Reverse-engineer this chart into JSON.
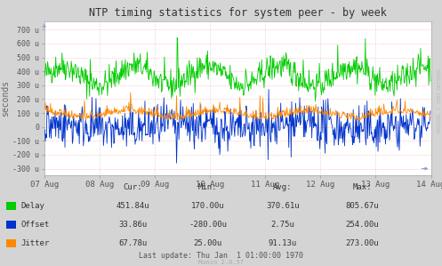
{
  "title": "NTP timing statistics for system peer - by week",
  "ylabel": "seconds",
  "background_color": "#d4d4d4",
  "plot_bg_color": "#ffffff",
  "grid_color_h": "#ff9999",
  "grid_color_v": "#aaaaaa",
  "yticks": [
    -300,
    -200,
    -100,
    0,
    100,
    200,
    300,
    400,
    500,
    600,
    700
  ],
  "ytick_labels": [
    "-300 u",
    "-200 u",
    "-100 u",
    "0",
    "100 u",
    "200 u",
    "300 u",
    "400 u",
    "500 u",
    "600 u",
    "700 u"
  ],
  "ylim": [
    -350,
    760
  ],
  "x_labels": [
    "07 Aug",
    "08 Aug",
    "09 Aug",
    "10 Aug",
    "11 Aug",
    "12 Aug",
    "13 Aug",
    "14 Aug"
  ],
  "delay_color": "#00cc00",
  "offset_color": "#0033cc",
  "jitter_color": "#ff8800",
  "stats_headers": [
    "Cur:",
    "Min:",
    "Avg:",
    "Max:"
  ],
  "stats_rows": [
    {
      "name": "Delay",
      "color": "#00cc00",
      "values": [
        "451.84u",
        "170.00u",
        "370.61u",
        "805.67u"
      ]
    },
    {
      "name": "Offset",
      "color": "#0033cc",
      "values": [
        "33.86u",
        "-280.00u",
        "2.75u",
        "254.00u"
      ]
    },
    {
      "name": "Jitter",
      "color": "#ff8800",
      "values": [
        "67.78u",
        "25.00u",
        "91.13u",
        "273.00u"
      ]
    }
  ],
  "last_update": "Last update: Thu Jan  1 01:00:00 1970",
  "watermark": "Munin 2.0.57",
  "rrdtool_label": "RRDTOOL / TOBI OETIKER",
  "seed": 42,
  "n_points": 672
}
